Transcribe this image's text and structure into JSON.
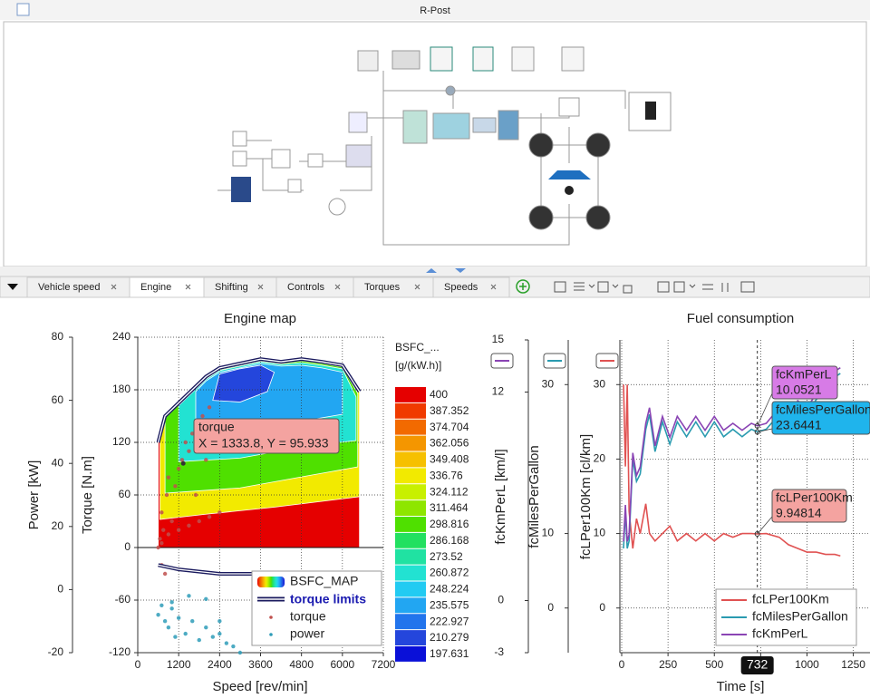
{
  "window": {
    "title": "R-Post"
  },
  "tabs": [
    {
      "label": "Vehicle speed"
    },
    {
      "label": "Engine",
      "active": true
    },
    {
      "label": "Shifting"
    },
    {
      "label": "Controls"
    },
    {
      "label": "Torques"
    },
    {
      "label": "Speeds"
    }
  ],
  "engine_map": {
    "type": "contour",
    "title": "Engine map",
    "x_label": "Speed [rev/min]",
    "y_label": "Torque [N.m]",
    "y2_label": "Power [kW]",
    "xlim": [
      0,
      7200
    ],
    "xticks": [
      0,
      1200,
      2400,
      3600,
      4800,
      6000,
      7200
    ],
    "ylim": [
      -120,
      240
    ],
    "yticks": [
      -120,
      -60,
      0,
      60,
      120,
      180,
      240
    ],
    "y2lim": [
      -20,
      80
    ],
    "y2ticks": [
      -20,
      0,
      20,
      40,
      60,
      80
    ],
    "grid": true,
    "colorbar": {
      "title": "BSFC_...",
      "unit": "[g/(kW.h)]",
      "levels": [
        400,
        387.352,
        374.704,
        362.056,
        349.408,
        336.76,
        324.112,
        311.464,
        298.816,
        286.168,
        273.52,
        260.872,
        248.224,
        235.575,
        222.927,
        210.279,
        197.631
      ],
      "colors": [
        "#e50000",
        "#f03a00",
        "#f26a00",
        "#f49600",
        "#f6c000",
        "#f2ea00",
        "#c8f000",
        "#8ee600",
        "#4fe000",
        "#22e060",
        "#20e2a2",
        "#22e2d2",
        "#22cbf2",
        "#22a6f2",
        "#2274ec",
        "#2446dc",
        "#0a10d8"
      ]
    },
    "bsfc_map": {
      "name": "BSFC_MAP",
      "regions": [
        {
          "level": 400,
          "points": [
            [
              600,
              0
            ],
            [
              600,
              120
            ],
            [
              800,
              150
            ],
            [
              1200,
              165
            ],
            [
              1600,
              180
            ],
            [
              2000,
              195
            ],
            [
              2400,
              205
            ],
            [
              3000,
              210
            ],
            [
              3600,
              215
            ],
            [
              4200,
              212
            ],
            [
              4800,
              215
            ],
            [
              5400,
              212
            ],
            [
              6000,
              208
            ],
            [
              6500,
              178
            ],
            [
              6500,
              0
            ]
          ]
        },
        {
          "level": 336.76,
          "points": [
            [
              650,
              32
            ],
            [
              650,
              125
            ],
            [
              800,
              150
            ],
            [
              1200,
              165
            ],
            [
              1600,
              180
            ],
            [
              2000,
              195
            ],
            [
              2400,
              205
            ],
            [
              3000,
              210
            ],
            [
              3600,
              215
            ],
            [
              4200,
              212
            ],
            [
              4800,
              215
            ],
            [
              5400,
              212
            ],
            [
              6000,
              208
            ],
            [
              6500,
              178
            ],
            [
              6500,
              58
            ],
            [
              4000,
              46
            ],
            [
              2000,
              38
            ]
          ]
        },
        {
          "level": 298.816,
          "points": [
            [
              800,
              62
            ],
            [
              800,
              148
            ],
            [
              1200,
              163
            ],
            [
              1600,
              178
            ],
            [
              2000,
              193
            ],
            [
              2400,
              203
            ],
            [
              3000,
              208
            ],
            [
              3600,
              213
            ],
            [
              4200,
              210
            ],
            [
              4800,
              213
            ],
            [
              5400,
              210
            ],
            [
              6000,
              206
            ],
            [
              6450,
              176
            ],
            [
              6450,
              92
            ],
            [
              5000,
              82
            ],
            [
              3000,
              68
            ]
          ]
        },
        {
          "level": 260.872,
          "points": [
            [
              1200,
              98
            ],
            [
              1200,
              162
            ],
            [
              1600,
              177
            ],
            [
              2000,
              192
            ],
            [
              2400,
              202
            ],
            [
              3000,
              207
            ],
            [
              3600,
              212
            ],
            [
              4200,
              209
            ],
            [
              4800,
              211
            ],
            [
              5400,
              208
            ],
            [
              6000,
              204
            ],
            [
              6400,
              172
            ],
            [
              6400,
              122
            ],
            [
              5000,
              116
            ],
            [
              3000,
              102
            ]
          ]
        },
        {
          "level": 235.575,
          "points": [
            [
              1700,
              132
            ],
            [
              1700,
              178
            ],
            [
              2000,
              190
            ],
            [
              2400,
              200
            ],
            [
              3000,
              205
            ],
            [
              3600,
              210
            ],
            [
              4200,
              207
            ],
            [
              4800,
              208
            ],
            [
              5400,
              205
            ],
            [
              6000,
              200
            ],
            [
              6000,
              152
            ],
            [
              4500,
              142
            ],
            [
              3000,
              136
            ]
          ]
        },
        {
          "level": 210.279,
          "points": [
            [
              2200,
              168
            ],
            [
              2400,
              198
            ],
            [
              3000,
              204
            ],
            [
              3600,
              208
            ],
            [
              4000,
              200
            ],
            [
              3800,
              178
            ],
            [
              3000,
              166
            ]
          ]
        }
      ]
    },
    "torque_limits": {
      "name": "torque limits",
      "color": "#1a1a5e",
      "upper": {
        "x": [
          600,
          800,
          1200,
          1600,
          2000,
          2400,
          3000,
          3600,
          4200,
          4800,
          5400,
          6000,
          6500
        ],
        "values": [
          120,
          150,
          165,
          180,
          195,
          205,
          210,
          215,
          212,
          215,
          212,
          208,
          178
        ]
      },
      "lower": {
        "x": [
          600,
          1200,
          2400,
          3600,
          4800,
          6000,
          6500
        ],
        "values": [
          -20,
          -25,
          -30,
          -30,
          -30,
          -30,
          -30
        ]
      }
    },
    "series": [
      {
        "name": "torque",
        "color": "#c0504d",
        "x": [
          600,
          650,
          700,
          700,
          750,
          800,
          850,
          900,
          1000,
          1100,
          1200,
          1300,
          1333.8,
          1400,
          1500,
          1600,
          1700,
          1800,
          1900,
          2000,
          2100,
          2200,
          2300,
          700,
          900,
          1200,
          1500,
          1800,
          2100,
          2400
        ],
        "values": [
          0,
          10,
          -20,
          40,
          20,
          -30,
          60,
          80,
          30,
          70,
          90,
          100,
          95.933,
          120,
          110,
          130,
          60,
          140,
          150,
          100,
          160,
          140,
          120,
          5,
          15,
          20,
          25,
          30,
          35,
          40
        ]
      },
      {
        "name": "power",
        "color": "#2e9cb8",
        "axis": "y2",
        "x": [
          600,
          700,
          800,
          900,
          1000,
          1100,
          1200,
          1400,
          1600,
          1800,
          2000,
          2200,
          2400,
          2600,
          2800,
          3000,
          1000,
          1500,
          2000,
          2400
        ],
        "values": [
          -8,
          -5,
          -10,
          -12,
          -6,
          -15,
          -9,
          -14,
          -10,
          -16,
          -12,
          -15,
          -10,
          -17,
          -18,
          -20,
          -4,
          -2,
          -3,
          -14
        ]
      }
    ],
    "tooltip": {
      "title": "torque",
      "text": "X = 1333.8, Y = 95.933",
      "x": 1333.8,
      "y": 95.933
    }
  },
  "fuel_consumption": {
    "type": "line",
    "title": "Fuel consumption",
    "x_label": "Time [s]",
    "xlim": [
      0,
      1340
    ],
    "xticks": [
      0,
      250,
      500,
      750,
      1000,
      1250
    ],
    "grid": true,
    "axes": [
      {
        "label": "fcKmPerL [km/l]",
        "ylim": [
          -3,
          15
        ],
        "yticks": [
          -3,
          0,
          12,
          15
        ]
      },
      {
        "label": "fcMilesPerGallon",
        "ylim": [
          -6,
          36
        ],
        "yticks": [
          0,
          10,
          30
        ]
      },
      {
        "label": "fcLPer100Km [cl/km]",
        "ylim": [
          -6,
          36
        ],
        "yticks": [
          0,
          10,
          20,
          30
        ]
      }
    ],
    "x": [
      10,
      20,
      30,
      40,
      60,
      80,
      100,
      130,
      150,
      180,
      220,
      260,
      300,
      350,
      400,
      450,
      500,
      550,
      600,
      650,
      700,
      732,
      780,
      850,
      900,
      950,
      1000,
      1050,
      1100,
      1150,
      1180
    ],
    "series": [
      {
        "name": "fcLPer100Km",
        "color": "#e05252",
        "axis": 2,
        "values": [
          30,
          19,
          30,
          13,
          8,
          12,
          10,
          14,
          10,
          9,
          10,
          11,
          9,
          10,
          9,
          10,
          9,
          10,
          9.5,
          10,
          10,
          9.94814,
          10,
          9.5,
          8.5,
          8,
          7.5,
          7.5,
          7.2,
          7.2,
          7
        ]
      },
      {
        "name": "fcMilesPerGallon",
        "color": "#2a9bb0",
        "axis": 1,
        "values": [
          8,
          13,
          8,
          9,
          20,
          17,
          18,
          24,
          26,
          21,
          25,
          22,
          25,
          23,
          25,
          23,
          25,
          23,
          24,
          23,
          24,
          23.6441,
          24,
          26,
          25,
          27,
          26,
          28,
          29,
          31,
          31.5
        ]
      },
      {
        "name": "fcKmPerL",
        "color": "#8a44b4",
        "axis": 0,
        "values": [
          3.4,
          5.5,
          3.4,
          3.8,
          8.5,
          7.2,
          7.7,
          10.2,
          11.1,
          8.9,
          10.6,
          9.4,
          10.6,
          9.8,
          10.6,
          9.8,
          10.6,
          9.8,
          10.2,
          9.8,
          10.2,
          10.0521,
          10.2,
          11.1,
          10.6,
          11.5,
          11.1,
          11.9,
          12.3,
          13.2,
          13.4
        ]
      }
    ],
    "cursor": 732
  }
}
